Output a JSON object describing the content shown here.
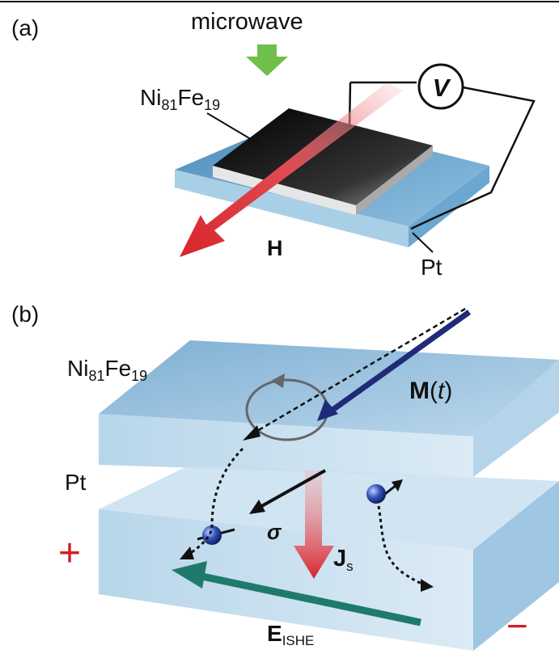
{
  "panel_a": {
    "tag": "(a)",
    "microwave": "microwave",
    "film": {
      "base": "Ni",
      "sub1": "81",
      "mid": "Fe",
      "sub2": "19"
    },
    "voltmeter": "V",
    "field": "H",
    "substrate": "Pt"
  },
  "panel_b": {
    "tag": "(b)",
    "film": {
      "base": "Ni",
      "sub1": "81",
      "mid": "Fe",
      "sub2": "19"
    },
    "magnetization": {
      "bold": "M",
      "open": "(",
      "italic": "t",
      "close": ")"
    },
    "substrate": "Pt",
    "plus": "+",
    "minus": "−",
    "spin": "σ",
    "spin_current": {
      "bold": "J",
      "sub": "s"
    },
    "field": {
      "bold": "E",
      "sub": "ISHE"
    }
  },
  "colors": {
    "slab_top": "#9fc4df",
    "slab_side": "#cfe3f1",
    "pt_layer": "#5e9cc9",
    "h_arrow": "#d8252b",
    "m_arrow": "#1f2a78",
    "e_arrow": "#1f7a6b",
    "microwave_arrow": "#6fbf4a",
    "sign": "#d02020"
  }
}
